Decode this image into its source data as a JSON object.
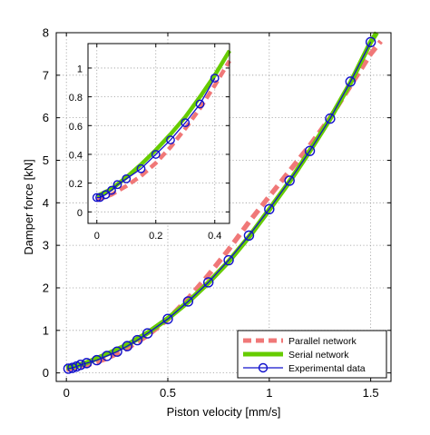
{
  "chart_data": {
    "type": "line",
    "xlabel": "Piston velocity [mm/s]",
    "ylabel": "Damper force [kN]",
    "xlim": [
      -0.05,
      1.6
    ],
    "ylim": [
      -0.2,
      8
    ],
    "x_ticks": [
      0,
      0.5,
      1,
      1.5
    ],
    "x_tick_labels": [
      "0",
      "0.5",
      "1",
      "1.5"
    ],
    "y_ticks": [
      0,
      1,
      2,
      3,
      4,
      5,
      6,
      7,
      8
    ],
    "y_tick_labels": [
      "0",
      "1",
      "2",
      "3",
      "4",
      "5",
      "6",
      "7",
      "8"
    ],
    "grid": true,
    "legend_position": "bottom-right",
    "colors": {
      "parallel": "#f07878",
      "serial": "#66cc00",
      "experimental": "#1010cc"
    },
    "series": [
      {
        "name": "Parallel network",
        "style": "dashed",
        "x": [
          0,
          0.1,
          0.2,
          0.3,
          0.4,
          0.5,
          0.6,
          0.7,
          0.8,
          0.9,
          1.0,
          1.1,
          1.2,
          1.3,
          1.4,
          1.5,
          1.55
        ],
        "y": [
          0.08,
          0.18,
          0.34,
          0.58,
          0.88,
          1.26,
          1.75,
          2.3,
          2.9,
          3.55,
          4.15,
          4.75,
          5.35,
          6.0,
          6.75,
          7.5,
          7.8
        ]
      },
      {
        "name": "Serial network",
        "style": "solid",
        "x": [
          0,
          0.05,
          0.1,
          0.2,
          0.3,
          0.4,
          0.5,
          0.6,
          0.7,
          0.8,
          0.9,
          1.0,
          1.1,
          1.2,
          1.3,
          1.4,
          1.5,
          1.53
        ],
        "y": [
          0.12,
          0.17,
          0.24,
          0.44,
          0.66,
          0.94,
          1.28,
          1.67,
          2.12,
          2.62,
          3.2,
          3.84,
          4.5,
          5.22,
          5.98,
          6.82,
          7.78,
          8.0
        ]
      },
      {
        "name": "Experimental data",
        "style": "solid-markers",
        "x": [
          0.01,
          0.03,
          0.05,
          0.07,
          0.1,
          0.15,
          0.2,
          0.25,
          0.3,
          0.35,
          0.4,
          0.5,
          0.6,
          0.7,
          0.8,
          0.9,
          1.0,
          1.1,
          1.2,
          1.3,
          1.4,
          1.5
        ],
        "y": [
          0.1,
          0.12,
          0.15,
          0.19,
          0.23,
          0.3,
          0.4,
          0.5,
          0.63,
          0.77,
          0.93,
          1.27,
          1.68,
          2.13,
          2.65,
          3.23,
          3.85,
          4.52,
          5.22,
          5.98,
          6.85,
          7.78
        ]
      }
    ],
    "inset": {
      "xlim": [
        -0.03,
        0.45
      ],
      "ylim": [
        -0.08,
        1.17
      ],
      "x_ticks": [
        0,
        0.2,
        0.4
      ],
      "x_tick_labels": [
        "0",
        "0.2",
        "0.4"
      ],
      "y_ticks": [
        0,
        0.2,
        0.4,
        0.6,
        0.8,
        1
      ],
      "y_tick_labels": [
        "0",
        "0.2",
        "0.4",
        "0.6",
        "0.8",
        "1"
      ],
      "grid": true,
      "series": [
        {
          "name": "Parallel network",
          "x": [
            0,
            0.05,
            0.1,
            0.15,
            0.2,
            0.25,
            0.3,
            0.35,
            0.4,
            0.45
          ],
          "y": [
            0.08,
            0.12,
            0.18,
            0.25,
            0.34,
            0.45,
            0.58,
            0.72,
            0.88,
            1.05
          ]
        },
        {
          "name": "Serial network",
          "x": [
            0,
            0.05,
            0.1,
            0.15,
            0.2,
            0.25,
            0.3,
            0.35,
            0.4,
            0.45
          ],
          "y": [
            0.11,
            0.16,
            0.24,
            0.33,
            0.43,
            0.54,
            0.66,
            0.8,
            0.95,
            1.12
          ]
        },
        {
          "name": "Experimental data",
          "x": [
            0.0,
            0.01,
            0.03,
            0.05,
            0.07,
            0.1,
            0.15,
            0.2,
            0.25,
            0.3,
            0.35,
            0.4
          ],
          "y": [
            0.1,
            0.1,
            0.12,
            0.15,
            0.19,
            0.23,
            0.3,
            0.4,
            0.5,
            0.62,
            0.75,
            0.93
          ]
        }
      ]
    }
  }
}
